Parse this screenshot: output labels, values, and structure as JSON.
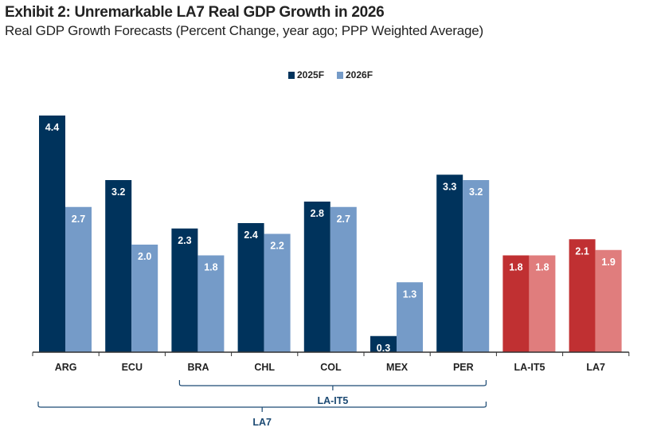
{
  "chart_data": {
    "type": "bar",
    "title": "Exhibit 2: Unremarkable LA7 Real GDP Growth in 2026",
    "subtitle": "Real GDP Growth Forecasts (Percent Change, year ago; PPP Weighted Average)",
    "categories": [
      "ARG",
      "ECU",
      "BRA",
      "CHL",
      "COL",
      "MEX",
      "PER",
      "LA-IT5",
      "LA7"
    ],
    "series": [
      {
        "name": "2025F",
        "values": [
          4.4,
          3.2,
          2.3,
          2.4,
          2.8,
          0.3,
          3.3,
          1.8,
          2.1
        ]
      },
      {
        "name": "2026F",
        "values": [
          2.7,
          2.0,
          1.8,
          2.2,
          2.7,
          1.3,
          3.2,
          1.8,
          1.9
        ]
      }
    ],
    "legend_position": "top-center",
    "ylim": [
      0,
      4.5
    ],
    "colors": {
      "2025F": "#00335c",
      "2026F": "#759bc8",
      "aggregate_2025F": "#c03032",
      "aggregate_2026F": "#e07d7d"
    },
    "aggregate_categories": [
      "LA-IT5",
      "LA7"
    ],
    "brackets": [
      {
        "label": "LA-IT5",
        "from": "BRA",
        "to": "PER"
      },
      {
        "label": "LA7",
        "from": "ARG",
        "to": "PER"
      }
    ]
  }
}
